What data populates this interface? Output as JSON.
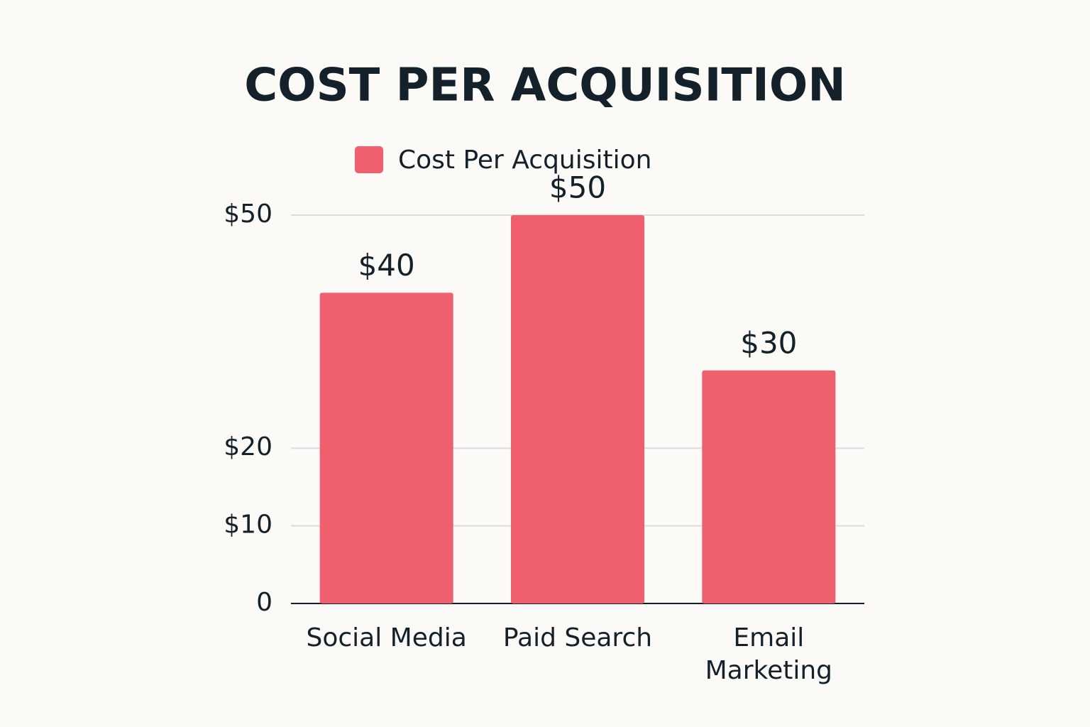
{
  "chart_data": {
    "type": "bar",
    "title": "COST PER ACQUISITION",
    "categories": [
      "Social Media",
      "Paid Search",
      "Email Marketing"
    ],
    "series": [
      {
        "name": "Cost Per Acquisition",
        "color": "#f05f6e",
        "values": [
          40,
          50,
          30
        ],
        "value_labels": [
          "$40",
          "$50",
          "$30"
        ]
      }
    ],
    "ylim": [
      0,
      50
    ],
    "yticks": [
      0,
      {
        "value": 10,
        "label": "$10"
      },
      {
        "value": 20,
        "label": "$20"
      },
      {
        "value": 50,
        "label": "$50"
      }
    ],
    "grid": true,
    "legend": "top"
  }
}
